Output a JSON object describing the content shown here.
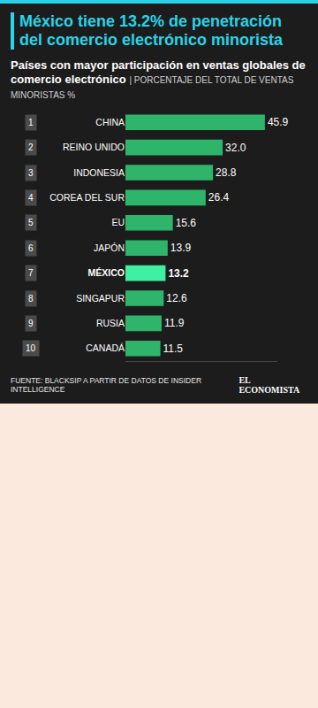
{
  "chart_data": {
    "type": "bar",
    "orientation": "horizontal",
    "title": "México tiene 13.2% de penetración del comercio electrónico minorista",
    "subtitle": "Países con mayor participación en ventas globales de comercio electrónico",
    "unit_note": "| PORCENTAJE DEL TOTAL DE VENTAS MINORISTAS %",
    "source": "FUENTE: BLACKSIP A PARTIR DE DATOS DE INSIDER INTELLIGENCE",
    "brand": "EL ECONOMISTA",
    "ranks": [
      1,
      2,
      3,
      4,
      5,
      6,
      7,
      8,
      9,
      10
    ],
    "categories": [
      "CHINA",
      "REINO UNIDO",
      "INDONESIA",
      "COREA DEL SUR",
      "EU",
      "JAPÓN",
      "MÉXICO",
      "SINGAPUR",
      "RUSIA",
      "CANADÁ"
    ],
    "values": [
      45.9,
      32.0,
      28.8,
      26.4,
      15.6,
      13.9,
      13.2,
      12.6,
      11.9,
      11.5
    ],
    "value_labels": [
      "45.9",
      "32.0",
      "28.8",
      "26.4",
      "15.6",
      "13.9",
      "13.2",
      "12.6",
      "11.9",
      "11.5"
    ],
    "colors": [
      "#2eb56b",
      "#2eb56b",
      "#2eb56b",
      "#2eb56b",
      "#2eb56b",
      "#2eb56b",
      "#3ff0a4",
      "#2eb56b",
      "#2eb56b",
      "#2eb56b"
    ],
    "xlim": [
      0,
      50
    ],
    "xticks": [],
    "data_labels": true,
    "tick_labels": "y",
    "grid": false
  }
}
